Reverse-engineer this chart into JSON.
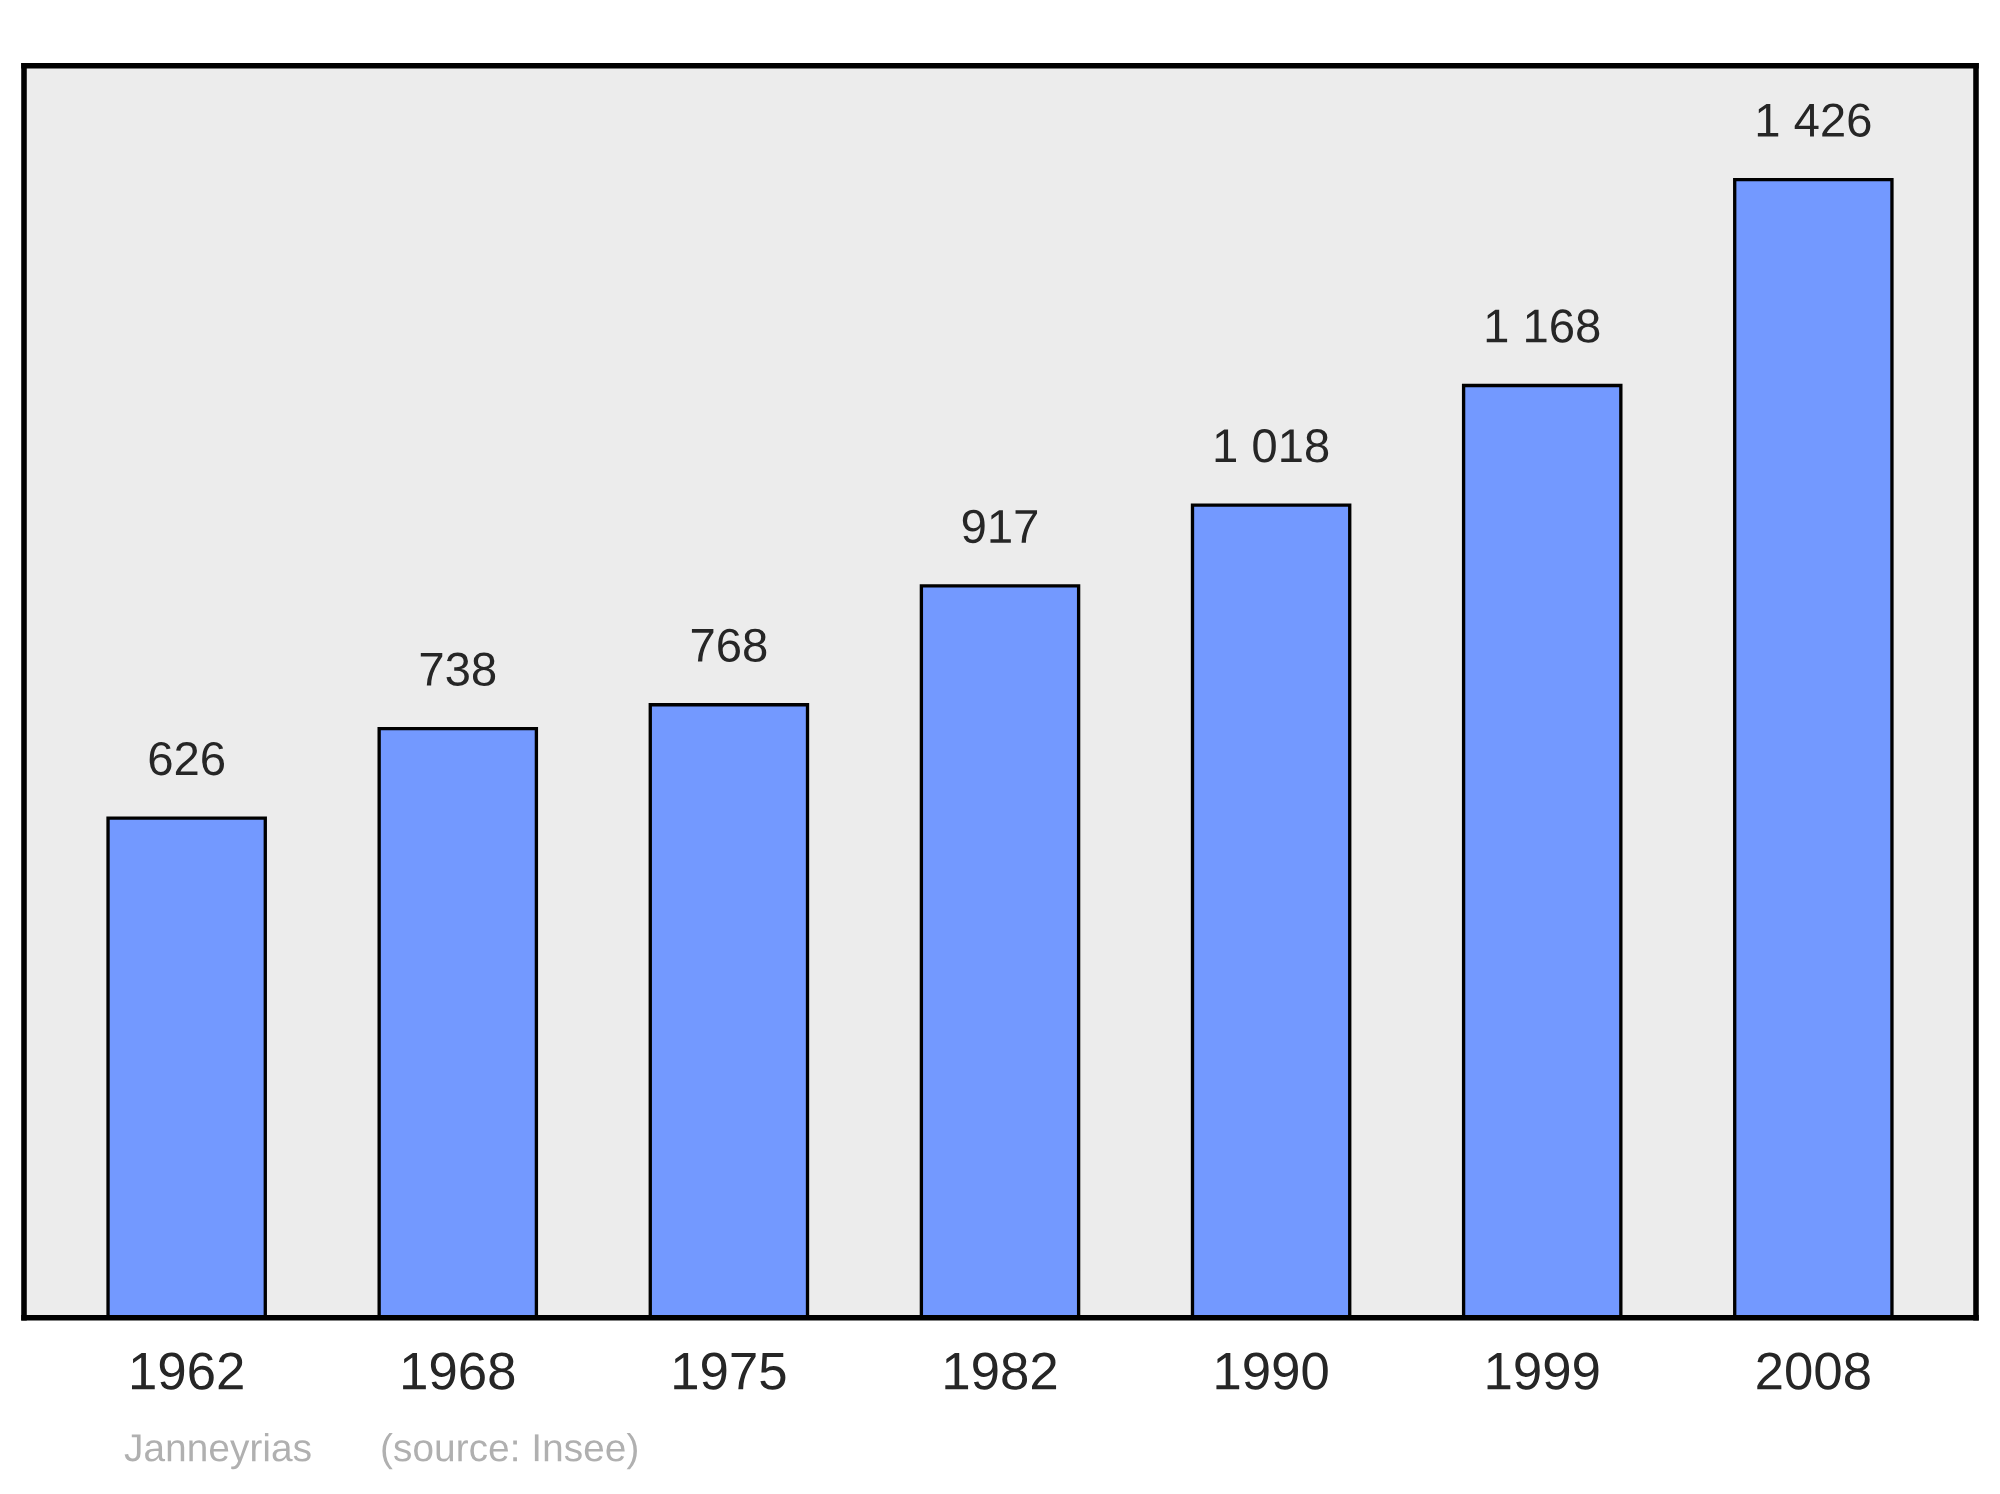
{
  "chart_data": {
    "type": "bar",
    "categories": [
      "1962",
      "1968",
      "1975",
      "1982",
      "1990",
      "1999",
      "2008"
    ],
    "values": [
      626,
      738,
      768,
      917,
      1018,
      1168,
      1426
    ],
    "value_labels": [
      "626",
      "738",
      "768",
      "917",
      "1 018",
      "1 168",
      "1 426"
    ],
    "color": "#7399ff",
    "tick_labels": "x",
    "grid": false,
    "annotations": [
      "Janneyrias",
      "(source: Insee)"
    ]
  }
}
